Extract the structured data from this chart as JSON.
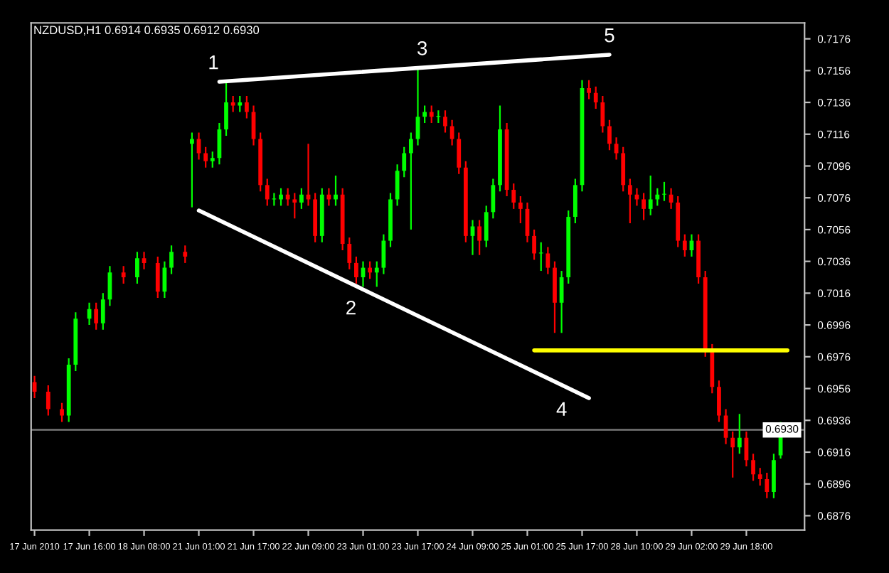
{
  "chart_data": {
    "type": "candlestick",
    "title": "NZDUSD,H1 0.6914 0.6935 0.6912 0.6930",
    "categories": [
      "17 Jun 2010",
      null,
      null,
      null,
      null,
      null,
      null,
      null,
      "17 Jun 16:00",
      null,
      null,
      null,
      null,
      null,
      null,
      null,
      "18 Jun 08:00",
      null,
      null,
      null,
      null,
      null,
      null,
      null,
      "21 Jun 01:00",
      null,
      null,
      null,
      null,
      null,
      null,
      null,
      "21 Jun 17:00",
      null,
      null,
      null,
      null,
      null,
      null,
      null,
      "22 Jun 09:00",
      null,
      null,
      null,
      null,
      null,
      null,
      null,
      "23 Jun 01:00",
      null,
      null,
      null,
      null,
      null,
      null,
      null,
      "23 Jun 17:00",
      null,
      null,
      null,
      null,
      null,
      null,
      null,
      "24 Jun 09:00",
      null,
      null,
      null,
      null,
      null,
      null,
      null,
      "25 Jun 01:00",
      null,
      null,
      null,
      null,
      null,
      null,
      null,
      "25 Jun 17:00",
      null,
      null,
      null,
      null,
      null,
      null,
      null,
      "28 Jun 10:00",
      null,
      null,
      null,
      null,
      null,
      null,
      null,
      "29 Jun 02:00",
      null,
      null,
      null,
      null,
      null,
      null,
      null,
      "29 Jun 18:00",
      null,
      null,
      null,
      null,
      null,
      null,
      null,
      null
    ],
    "ohlc": [
      [
        0.696,
        0.6964,
        0.695,
        0.6954
      ],
      null,
      [
        0.6954,
        0.6958,
        0.6939,
        0.6943
      ],
      null,
      [
        0.6943,
        0.6947,
        0.6935,
        0.6939
      ],
      [
        0.6939,
        0.6975,
        0.6935,
        0.6971
      ],
      [
        0.6971,
        0.7004,
        0.6967,
        0.7
      ],
      null,
      [
        0.7,
        0.701,
        0.6996,
        0.7006
      ],
      [
        0.7006,
        0.701,
        0.6993,
        0.6997
      ],
      [
        0.6997,
        0.7016,
        0.6993,
        0.7012
      ],
      [
        0.7012,
        0.7033,
        0.7008,
        0.7029
      ],
      null,
      [
        0.7029,
        0.7033,
        0.7022,
        0.7026
      ],
      null,
      [
        0.7026,
        0.7042,
        0.7022,
        0.7038
      ],
      [
        0.7038,
        0.7042,
        0.7031,
        0.7035
      ],
      null,
      [
        0.7035,
        0.7039,
        0.7013,
        0.7017
      ],
      [
        0.7017,
        0.7036,
        0.7013,
        0.7032
      ],
      [
        0.7032,
        0.7046,
        0.7028,
        0.7042
      ],
      null,
      [
        0.7042,
        0.7046,
        0.7035,
        0.7039
      ],
      [
        0.711,
        0.7117,
        0.707,
        0.7113
      ],
      [
        0.7113,
        0.7117,
        0.71,
        0.7104
      ],
      [
        0.7104,
        0.7108,
        0.7095,
        0.7099
      ],
      [
        0.7099,
        0.7105,
        0.7095,
        0.7101
      ],
      [
        0.7101,
        0.7123,
        0.7097,
        0.7119
      ],
      [
        0.7119,
        0.7149,
        0.7115,
        0.7136
      ],
      [
        0.7136,
        0.714,
        0.713,
        0.7134
      ],
      [
        0.7134,
        0.714,
        0.713,
        0.7136
      ],
      [
        0.7136,
        0.714,
        0.7126,
        0.713
      ],
      [
        0.713,
        0.7134,
        0.7109,
        0.7113
      ],
      [
        0.7113,
        0.7117,
        0.708,
        0.7084
      ],
      [
        0.7084,
        0.7088,
        0.7071,
        0.7075
      ],
      [
        0.7075,
        0.7079,
        0.7071,
        0.7075
      ],
      [
        0.7075,
        0.7082,
        0.7071,
        0.7078
      ],
      [
        0.7078,
        0.7082,
        0.7071,
        0.7075
      ],
      [
        0.7075,
        0.7079,
        0.7063,
        0.7073
      ],
      [
        0.7073,
        0.7082,
        0.7069,
        0.7078
      ],
      [
        0.7078,
        0.711,
        0.7071,
        0.7075
      ],
      [
        0.7075,
        0.7079,
        0.7048,
        0.7052
      ],
      [
        0.7052,
        0.7082,
        0.7048,
        0.7078
      ],
      [
        0.7078,
        0.7082,
        0.7071,
        0.7075
      ],
      [
        0.7075,
        0.709,
        0.7071,
        0.7078
      ],
      [
        0.7078,
        0.7082,
        0.7043,
        0.7047
      ],
      [
        0.7047,
        0.7051,
        0.7031,
        0.7035
      ],
      [
        0.7035,
        0.7039,
        0.7022,
        0.7026
      ],
      [
        0.7026,
        0.7036,
        0.702,
        0.7032
      ],
      [
        0.7032,
        0.7036,
        0.7025,
        0.7029
      ],
      [
        0.7029,
        0.7036,
        0.702,
        0.7032
      ],
      [
        0.7032,
        0.7053,
        0.7028,
        0.7049
      ],
      [
        0.7049,
        0.7079,
        0.7045,
        0.7075
      ],
      [
        0.7075,
        0.7097,
        0.7071,
        0.7093
      ],
      [
        0.7093,
        0.7108,
        0.7089,
        0.7104
      ],
      [
        0.7104,
        0.7117,
        0.7056,
        0.7113
      ],
      [
        0.7113,
        0.7158,
        0.7109,
        0.7127
      ],
      [
        0.7127,
        0.7134,
        0.7123,
        0.713
      ],
      [
        0.713,
        0.7134,
        0.7123,
        0.7127
      ],
      [
        0.7127,
        0.7131,
        0.7123,
        0.7127
      ],
      [
        0.7127,
        0.7131,
        0.7117,
        0.7121
      ],
      [
        0.7121,
        0.7125,
        0.7109,
        0.7113
      ],
      [
        0.7113,
        0.7117,
        0.7091,
        0.7095
      ],
      [
        0.7095,
        0.7099,
        0.7048,
        0.7052
      ],
      [
        0.7052,
        0.7062,
        0.704,
        0.7058
      ],
      [
        0.7058,
        0.7062,
        0.704,
        0.7049
      ],
      [
        0.7049,
        0.7071,
        0.7045,
        0.7067
      ],
      [
        0.7067,
        0.7088,
        0.7063,
        0.7084
      ],
      [
        0.7084,
        0.7134,
        0.708,
        0.7119
      ],
      [
        0.7119,
        0.7123,
        0.7077,
        0.7081
      ],
      [
        0.7081,
        0.7085,
        0.7069,
        0.7073
      ],
      [
        0.7073,
        0.7077,
        0.706,
        0.7069
      ],
      [
        0.7069,
        0.7073,
        0.7048,
        0.7052
      ],
      [
        0.7052,
        0.7056,
        0.7037,
        0.7041
      ],
      [
        0.7041,
        0.7048,
        0.703,
        0.7041
      ],
      [
        0.7041,
        0.7045,
        0.7028,
        0.7032
      ],
      [
        0.7032,
        0.7036,
        0.6991,
        0.701
      ],
      [
        0.701,
        0.703,
        0.6991,
        0.7026
      ],
      [
        0.7026,
        0.7068,
        0.7022,
        0.7064
      ],
      [
        0.7064,
        0.7088,
        0.706,
        0.7084
      ],
      [
        0.7084,
        0.715,
        0.708,
        0.7145
      ],
      [
        0.7145,
        0.715,
        0.7138,
        0.7142
      ],
      [
        0.7142,
        0.7146,
        0.7132,
        0.7136
      ],
      [
        0.7136,
        0.714,
        0.7117,
        0.7121
      ],
      [
        0.7121,
        0.7125,
        0.7106,
        0.711
      ],
      [
        0.711,
        0.7114,
        0.71,
        0.7104
      ],
      [
        0.7104,
        0.7108,
        0.708,
        0.7084
      ],
      [
        0.7084,
        0.7088,
        0.706,
        0.7078
      ],
      [
        0.7078,
        0.7082,
        0.7071,
        0.7075
      ],
      [
        0.7075,
        0.7079,
        0.7062,
        0.7069
      ],
      [
        0.7069,
        0.709,
        0.7065,
        0.7075
      ],
      [
        0.7075,
        0.7082,
        0.7071,
        0.7078
      ],
      [
        0.7078,
        0.7086,
        0.7074,
        0.7078
      ],
      [
        0.7078,
        0.7082,
        0.7069,
        0.7073
      ],
      [
        0.7073,
        0.7077,
        0.7045,
        0.7049
      ],
      [
        0.7049,
        0.7053,
        0.7039,
        0.7043
      ],
      [
        0.7043,
        0.7053,
        0.7039,
        0.7049
      ],
      [
        0.7049,
        0.7053,
        0.7022,
        0.7026
      ],
      [
        0.7026,
        0.703,
        0.6976,
        0.698
      ],
      [
        0.698,
        0.6984,
        0.6953,
        0.6957
      ],
      [
        0.6957,
        0.6961,
        0.6935,
        0.6939
      ],
      [
        0.6939,
        0.6943,
        0.6921,
        0.6925
      ],
      [
        0.6925,
        0.6929,
        0.69,
        0.6919
      ],
      [
        0.6919,
        0.694,
        0.6915,
        0.6925
      ],
      [
        0.6925,
        0.6929,
        0.6907,
        0.6911
      ],
      [
        0.6911,
        0.6915,
        0.6898,
        0.6902
      ],
      [
        0.6902,
        0.6906,
        0.6895,
        0.6899
      ],
      [
        0.6899,
        0.6903,
        0.6887,
        0.6891
      ],
      [
        0.6891,
        0.6915,
        0.6887,
        0.6911
      ],
      [
        0.6914,
        0.6935,
        0.6912,
        0.693
      ],
      null,
      null,
      null
    ],
    "series": [
      {
        "type": "line",
        "color": "#ffffff",
        "values": [
          null,
          null,
          null,
          null,
          null,
          null,
          null,
          null,
          null,
          null,
          null,
          null,
          null,
          null,
          null,
          null,
          null,
          null,
          null,
          null,
          null,
          null,
          null,
          null,
          null,
          null,
          null,
          0.7149,
          null,
          null,
          null,
          null,
          null,
          null,
          null,
          null,
          null,
          null,
          null,
          null,
          null,
          null,
          null,
          null,
          null,
          null,
          null,
          null,
          null,
          null,
          null,
          null,
          null,
          null,
          null,
          null,
          null,
          null,
          null,
          null,
          null,
          null,
          null,
          null,
          null,
          null,
          null,
          null,
          null,
          null,
          null,
          null,
          null,
          null,
          null,
          null,
          null,
          null,
          null,
          null,
          null,
          null,
          null,
          null,
          0.7166,
          null,
          null,
          null,
          null,
          null,
          null,
          null,
          null,
          null,
          null,
          null,
          null,
          null,
          null,
          null,
          null,
          null,
          null,
          null,
          null,
          null,
          null,
          null,
          null,
          null,
          null,
          null,
          null
        ]
      },
      {
        "type": "line",
        "color": "#ffffff",
        "values": [
          null,
          null,
          null,
          null,
          null,
          null,
          null,
          null,
          null,
          null,
          null,
          null,
          null,
          null,
          null,
          null,
          null,
          null,
          null,
          null,
          null,
          null,
          null,
          null,
          0.7068,
          null,
          null,
          null,
          null,
          null,
          null,
          null,
          null,
          null,
          null,
          null,
          null,
          null,
          null,
          null,
          null,
          null,
          null,
          null,
          null,
          null,
          null,
          null,
          null,
          null,
          null,
          null,
          null,
          null,
          null,
          null,
          null,
          null,
          null,
          null,
          null,
          null,
          null,
          null,
          null,
          null,
          null,
          null,
          null,
          null,
          null,
          null,
          null,
          null,
          null,
          null,
          null,
          null,
          null,
          null,
          null,
          0.695,
          null,
          null,
          null,
          null,
          null,
          null,
          null,
          null,
          null,
          null,
          null,
          null,
          null,
          null,
          null,
          null,
          null,
          null,
          null,
          null,
          null,
          null,
          null,
          null,
          null,
          null,
          null,
          null,
          null,
          null,
          null
        ]
      },
      {
        "type": "line",
        "color": "#ffff00",
        "values": [
          null,
          null,
          null,
          null,
          null,
          null,
          null,
          null,
          null,
          null,
          null,
          null,
          null,
          null,
          null,
          null,
          null,
          null,
          null,
          null,
          null,
          null,
          null,
          null,
          null,
          null,
          null,
          null,
          null,
          null,
          null,
          null,
          null,
          null,
          null,
          null,
          null,
          null,
          null,
          null,
          null,
          null,
          null,
          null,
          null,
          null,
          null,
          null,
          null,
          null,
          null,
          null,
          null,
          null,
          null,
          null,
          null,
          null,
          null,
          null,
          null,
          null,
          null,
          null,
          null,
          null,
          null,
          null,
          null,
          null,
          null,
          null,
          null,
          0.698,
          null,
          null,
          null,
          null,
          null,
          null,
          null,
          null,
          null,
          null,
          null,
          null,
          null,
          null,
          null,
          null,
          null,
          null,
          null,
          null,
          null,
          null,
          null,
          null,
          null,
          null,
          null,
          null,
          null,
          null,
          null,
          null,
          null,
          null,
          null,
          null,
          0.698,
          null,
          null
        ]
      }
    ],
    "ref_lines": [
      {
        "axis": "y",
        "value": 0.693,
        "label": "0.6930",
        "color": "#808080"
      }
    ],
    "annotations": [
      "1",
      "2",
      "3",
      "4",
      "5"
    ],
    "ylim": [
      0.6867,
      0.7186
    ],
    "yticks": [
      0.6876,
      0.6896,
      0.6916,
      0.6936,
      0.6956,
      0.6976,
      0.6996,
      0.7016,
      0.7036,
      0.7056,
      0.7076,
      0.7096,
      0.7116,
      0.7136,
      0.7156,
      0.7176
    ],
    "grid": false,
    "legend": false
  }
}
